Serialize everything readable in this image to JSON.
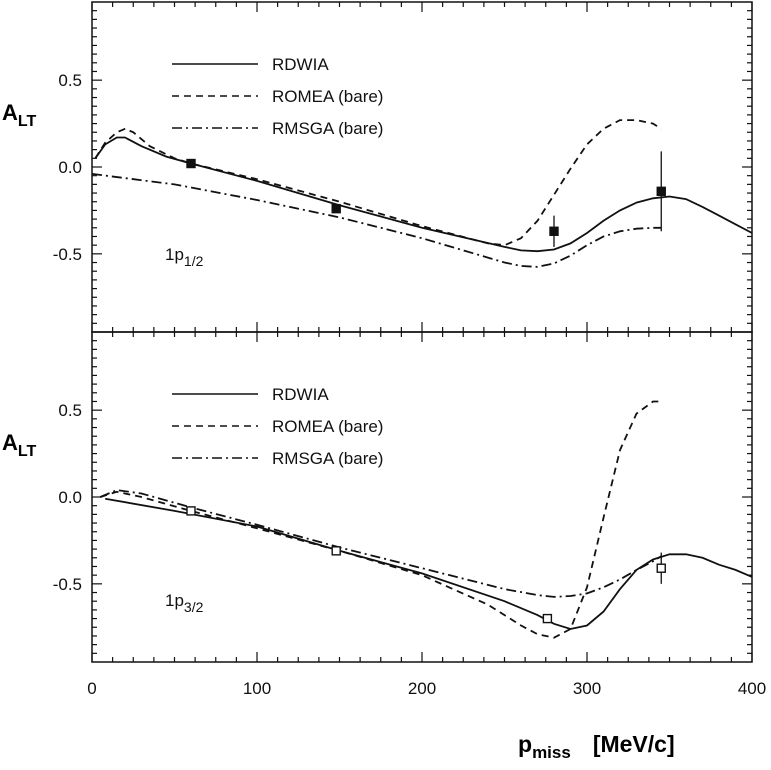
{
  "chart_data": {
    "type": "line",
    "x_axis": {
      "label_main": "p",
      "label_sub": "miss",
      "units": "[MeV/c]",
      "range": [
        0,
        400
      ],
      "tick_labels": [
        "0",
        "100",
        "200",
        "300",
        "400"
      ]
    },
    "legend": [
      "RDWIA",
      "ROMEA (bare)",
      "RMSGA (bare)"
    ],
    "panels": [
      {
        "id": "top",
        "ylabel_main": "A",
        "ylabel_sub": "LT",
        "ylim": [
          -0.95,
          0.95
        ],
        "y_tick_labels": [
          "0.5",
          "0.0",
          "-0.5"
        ],
        "annotation_main": "1p",
        "annotation_sub": "1/2",
        "series": [
          {
            "name": "RDWIA",
            "style": "solid",
            "x": [
              2,
              8,
              15,
              20,
              30,
              45,
              60,
              100,
              150,
              200,
              250,
              260,
              270,
              280,
              290,
              300,
              310,
              320,
              330,
              340,
              350,
              360,
              370,
              380,
              390,
              400
            ],
            "y": [
              0.05,
              0.13,
              0.17,
              0.17,
              0.12,
              0.06,
              0.02,
              -0.08,
              -0.22,
              -0.35,
              -0.46,
              -0.48,
              -0.485,
              -0.475,
              -0.44,
              -0.38,
              -0.31,
              -0.25,
              -0.205,
              -0.18,
              -0.17,
              -0.185,
              -0.23,
              -0.28,
              -0.33,
              -0.38
            ]
          },
          {
            "name": "ROMEA (bare)",
            "style": "dashed",
            "x": [
              2,
              8,
              15,
              20,
              25,
              35,
              50,
              60,
              100,
              150,
              200,
              240,
              250,
              260,
              270,
              280,
              290,
              300,
              310,
              320,
              330,
              340,
              345
            ],
            "y": [
              0.05,
              0.14,
              0.2,
              0.22,
              0.2,
              0.12,
              0.05,
              0.02,
              -0.07,
              -0.2,
              -0.34,
              -0.44,
              -0.45,
              -0.41,
              -0.31,
              -0.16,
              -0.01,
              0.13,
              0.22,
              0.27,
              0.27,
              0.25,
              0.22
            ]
          },
          {
            "name": "RMSGA (bare)",
            "style": "dashdot",
            "x": [
              0,
              50,
              100,
              150,
              200,
              250,
              260,
              270,
              280,
              290,
              300,
              310,
              320,
              330,
              340,
              345
            ],
            "y": [
              -0.04,
              -0.1,
              -0.19,
              -0.29,
              -0.41,
              -0.55,
              -0.57,
              -0.575,
              -0.555,
              -0.51,
              -0.45,
              -0.4,
              -0.37,
              -0.355,
              -0.35,
              -0.35
            ]
          }
        ],
        "data_points": {
          "marker": "filled-square",
          "x": [
            60,
            148,
            280,
            345
          ],
          "y": [
            0.02,
            -0.24,
            -0.37,
            -0.14
          ],
          "err": [
            0.0,
            0.0,
            0.09,
            0.23
          ]
        }
      },
      {
        "id": "bottom",
        "ylabel_main": "A",
        "ylabel_sub": "LT",
        "ylim": [
          -0.95,
          0.95
        ],
        "y_tick_labels": [
          "0.5",
          "0.0",
          "-0.5"
        ],
        "annotation_main": "1p",
        "annotation_sub": "3/2",
        "series": [
          {
            "name": "RDWIA",
            "style": "solid",
            "x": [
              8,
              50,
              100,
              150,
              200,
              250,
              270,
              280,
              290,
              300,
              310,
              320,
              330,
              340,
              350,
              360,
              370,
              380,
              390,
              400
            ],
            "y": [
              -0.01,
              -0.08,
              -0.17,
              -0.31,
              -0.44,
              -0.6,
              -0.68,
              -0.73,
              -0.76,
              -0.74,
              -0.66,
              -0.53,
              -0.42,
              -0.36,
              -0.33,
              -0.33,
              -0.35,
              -0.39,
              -0.42,
              -0.46
            ]
          },
          {
            "name": "ROMEA (bare)",
            "style": "dashed",
            "x": [
              5,
              15,
              30,
              60,
              100,
              150,
              200,
              240,
              260,
              270,
              280,
              290,
              300,
              310,
              320,
              330,
              340,
              345
            ],
            "y": [
              0.0,
              0.03,
              0.0,
              -0.08,
              -0.18,
              -0.31,
              -0.45,
              -0.62,
              -0.74,
              -0.79,
              -0.81,
              -0.76,
              -0.52,
              -0.12,
              0.27,
              0.48,
              0.55,
              0.55
            ]
          },
          {
            "name": "RMSGA (bare)",
            "style": "dashdot",
            "x": [
              5,
              15,
              30,
              60,
              100,
              150,
              200,
              250,
              270,
              280,
              290,
              300,
              310,
              320,
              330,
              340,
              345
            ],
            "y": [
              0.0,
              0.04,
              0.02,
              -0.06,
              -0.16,
              -0.29,
              -0.41,
              -0.53,
              -0.565,
              -0.575,
              -0.57,
              -0.555,
              -0.52,
              -0.475,
              -0.42,
              -0.37,
              -0.34
            ]
          }
        ],
        "data_points": {
          "marker": "open-square",
          "x": [
            60,
            148,
            276,
            345
          ],
          "y": [
            -0.08,
            -0.31,
            -0.7,
            -0.41
          ],
          "err": [
            0.0,
            0.0,
            0.0,
            0.09
          ]
        }
      }
    ]
  }
}
